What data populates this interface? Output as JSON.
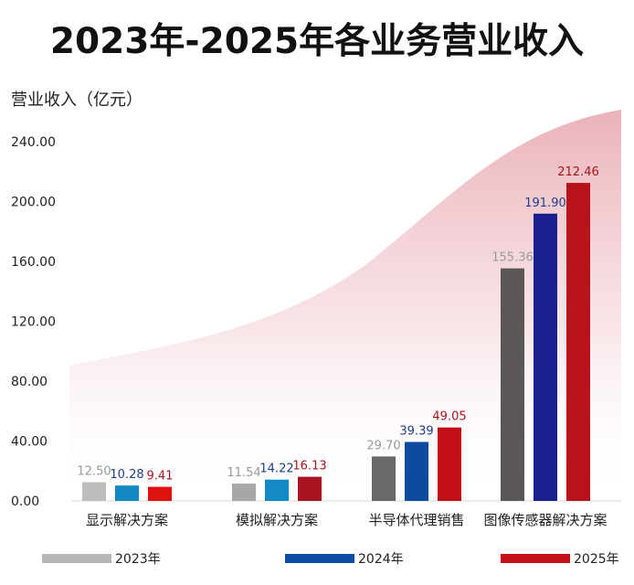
{
  "colors": {
    "series_2023": "#b9b6b6",
    "series_2024": "#0b4da2",
    "series_2025": "#c3101a",
    "label_2023": "#9a9a9a",
    "label_2024": "#1f3f8a",
    "label_2025": "#a8151d",
    "background_wave": "#e8a9b2"
  },
  "chart_data": {
    "type": "bar",
    "title": "2023年-2025年各业务营业收入",
    "ylabel": "营业收入（亿元）",
    "xlabel": "",
    "ylim": [
      0,
      240
    ],
    "yticks": [
      "0.00",
      "40.00",
      "80.00",
      "120.00",
      "160.00",
      "200.00",
      "240.00"
    ],
    "grid": false,
    "legend_position": "bottom",
    "categories": [
      "显示解决方案",
      "模拟解决方案",
      "半导体代理销售",
      "图像传感器解决方案"
    ],
    "series": [
      {
        "name": "2023年",
        "values": [
          12.5,
          11.54,
          29.7,
          155.36
        ],
        "labels": [
          "12.50",
          "11.54",
          "29.70",
          "155.36"
        ],
        "colors": [
          "#bfbcbc",
          "#a9a6a6",
          "#6b6868",
          "#5a5756"
        ]
      },
      {
        "name": "2024年",
        "values": [
          10.28,
          14.22,
          39.39,
          191.9
        ],
        "labels": [
          "10.28",
          "14.22",
          "39.39",
          "191.90"
        ],
        "colors": [
          "#1089c2",
          "#1389c6",
          "#0c4ba0",
          "#1c1f8f"
        ]
      },
      {
        "name": "2025年",
        "values": [
          9.41,
          16.13,
          49.05,
          212.46
        ],
        "labels": [
          "9.41",
          "16.13",
          "49.05",
          "212.46"
        ],
        "colors": [
          "#e0120f",
          "#a81520",
          "#c20f1a",
          "#b8121d"
        ]
      }
    ]
  }
}
